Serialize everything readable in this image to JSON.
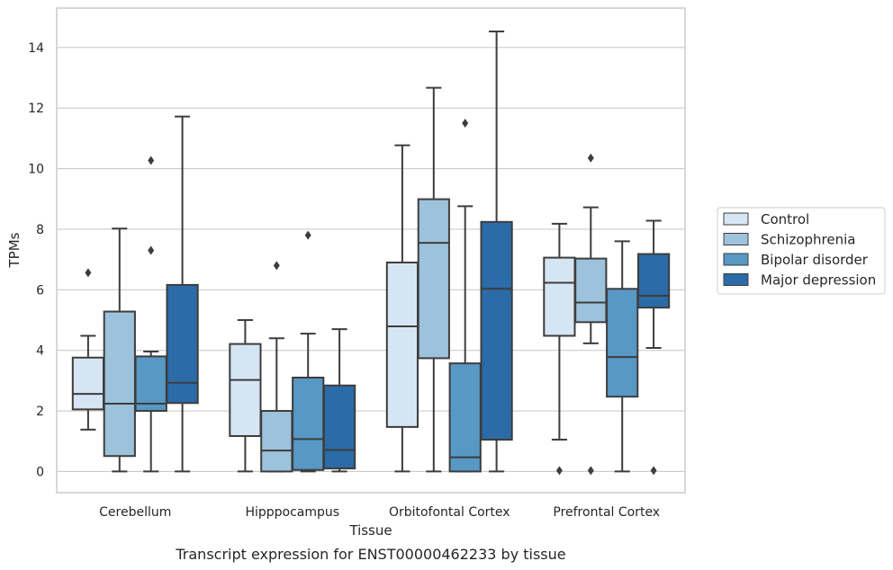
{
  "chart_data": {
    "type": "box",
    "caption": "Transcript expression for ENST00000462233 by tissue",
    "xlabel": "Tissue",
    "ylabel": "TPMs",
    "ylim": [
      -0.7,
      15.3
    ],
    "yticks": [
      0,
      2,
      4,
      6,
      8,
      10,
      12,
      14
    ],
    "grid": "horizontal",
    "legend_position": "right",
    "categories": [
      "Cerebellum",
      "Hipppocampus",
      "Orbitofontal Cortex",
      "Prefrontal Cortex"
    ],
    "series": [
      {
        "name": "Control",
        "color": "#d6e5f3",
        "boxes": [
          {
            "whislo": 1.38,
            "q1": 2.05,
            "med": 2.56,
            "q3": 3.76,
            "whishi": 4.48,
            "fliers": [
              6.56
            ]
          },
          {
            "whislo": 0.0,
            "q1": 1.17,
            "med": 3.02,
            "q3": 4.21,
            "whishi": 5.0,
            "fliers": []
          },
          {
            "whislo": 0.0,
            "q1": 1.47,
            "med": 4.79,
            "q3": 6.9,
            "whishi": 10.77,
            "fliers": []
          },
          {
            "whislo": 1.05,
            "q1": 4.48,
            "med": 6.23,
            "q3": 7.06,
            "whishi": 8.18,
            "fliers": [
              0.03
            ]
          }
        ]
      },
      {
        "name": "Schizophrenia",
        "color": "#9dc2dc",
        "boxes": [
          {
            "whislo": 0.0,
            "q1": 0.51,
            "med": 2.24,
            "q3": 5.28,
            "whishi": 8.02,
            "fliers": []
          },
          {
            "whislo": 0.0,
            "q1": 0.0,
            "med": 0.69,
            "q3": 2.0,
            "whishi": 4.4,
            "fliers": [
              6.8
            ]
          },
          {
            "whislo": 0.0,
            "q1": 3.74,
            "med": 7.55,
            "q3": 8.99,
            "whishi": 12.67,
            "fliers": []
          },
          {
            "whislo": 4.23,
            "q1": 4.93,
            "med": 5.58,
            "q3": 7.03,
            "whishi": 8.72,
            "fliers": [
              10.35,
              0.03
            ]
          }
        ]
      },
      {
        "name": "Bipolar disorder",
        "color": "#5798c5",
        "boxes": [
          {
            "whislo": 0.0,
            "q1": 2.0,
            "med": 2.24,
            "q3": 3.8,
            "whishi": 3.96,
            "fliers": [
              10.27,
              7.3
            ]
          },
          {
            "whislo": 0.0,
            "q1": 0.05,
            "med": 1.07,
            "q3": 3.1,
            "whishi": 4.55,
            "fliers": [
              7.8
            ]
          },
          {
            "whislo": 0.0,
            "q1": 0.0,
            "med": 0.47,
            "q3": 3.57,
            "whishi": 8.76,
            "fliers": [
              11.5
            ]
          },
          {
            "whislo": 0.0,
            "q1": 2.47,
            "med": 3.78,
            "q3": 6.03,
            "whishi": 7.6,
            "fliers": []
          }
        ]
      },
      {
        "name": "Major depression",
        "color": "#2b6ba8",
        "boxes": [
          {
            "whislo": 0.0,
            "q1": 2.26,
            "med": 2.93,
            "q3": 6.16,
            "whishi": 11.72,
            "fliers": []
          },
          {
            "whislo": 0.0,
            "q1": 0.1,
            "med": 0.71,
            "q3": 2.84,
            "whishi": 4.7,
            "fliers": []
          },
          {
            "whislo": 0.0,
            "q1": 1.05,
            "med": 6.03,
            "q3": 8.24,
            "whishi": 14.53,
            "fliers": []
          },
          {
            "whislo": 4.08,
            "q1": 5.41,
            "med": 5.8,
            "q3": 7.18,
            "whishi": 8.28,
            "fliers": [
              0.03
            ]
          }
        ]
      }
    ]
  }
}
